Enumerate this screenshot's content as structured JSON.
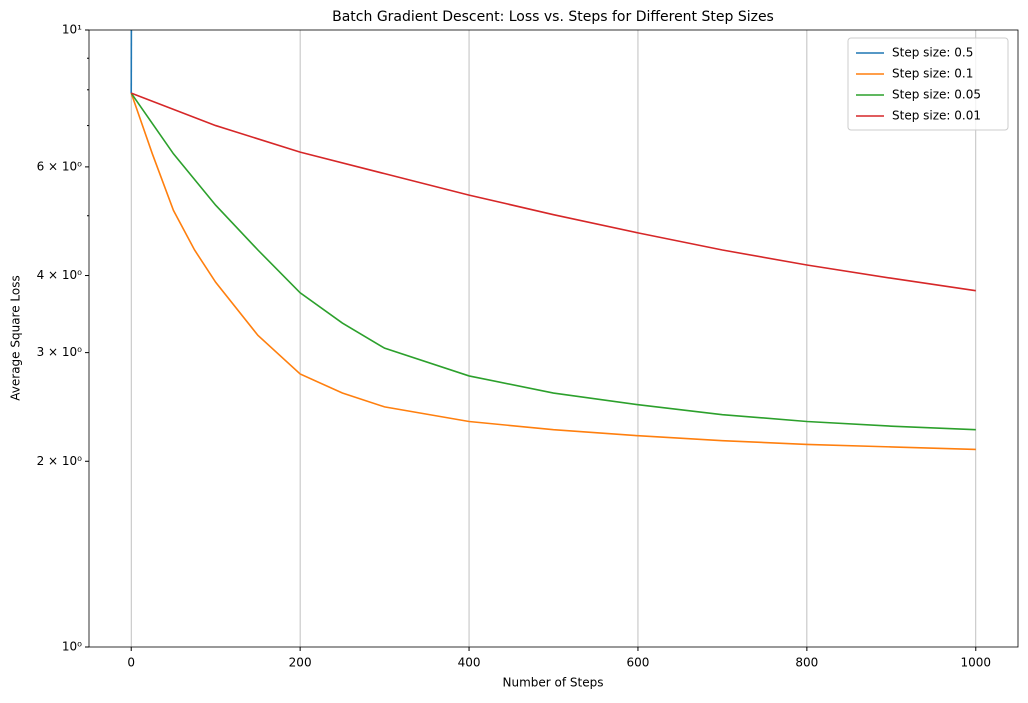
{
  "chart_data": {
    "type": "line",
    "title": "Batch Gradient Descent: Loss vs. Steps for Different Step Sizes",
    "xlabel": "Number of Steps",
    "ylabel": "Average Square Loss",
    "xlim": [
      -50,
      1050
    ],
    "xticks": [
      0,
      200,
      400,
      600,
      800,
      1000
    ],
    "ylim": [
      1,
      10
    ],
    "yscale": "log",
    "yticks": [
      {
        "value": 1,
        "label": "10⁰"
      },
      {
        "value": 2,
        "label": "2 × 10⁰"
      },
      {
        "value": 3,
        "label": "3 × 10⁰"
      },
      {
        "value": 4,
        "label": "4 × 10⁰"
      },
      {
        "value": 6,
        "label": "6 × 10⁰"
      },
      {
        "value": 10,
        "label": "10¹"
      }
    ],
    "yminor": [
      5,
      7,
      8,
      9
    ],
    "grid": "x",
    "legend": "upper right",
    "series": [
      {
        "name": "Step size: 0.5",
        "color": "#1f77b4",
        "x": [
          0,
          1
        ],
        "values": [
          7.9,
          30
        ]
      },
      {
        "name": "Step size: 0.1",
        "color": "#ff7f0e",
        "x": [
          0,
          25,
          50,
          75,
          100,
          150,
          200,
          250,
          300,
          400,
          500,
          600,
          700,
          800,
          900,
          1000
        ],
        "values": [
          7.9,
          6.3,
          5.1,
          4.4,
          3.9,
          3.2,
          2.77,
          2.58,
          2.45,
          2.32,
          2.25,
          2.2,
          2.16,
          2.13,
          2.11,
          2.09
        ]
      },
      {
        "name": "Step size: 0.05",
        "color": "#2ca02c",
        "x": [
          0,
          50,
          100,
          150,
          200,
          250,
          300,
          400,
          500,
          600,
          700,
          800,
          900,
          1000
        ],
        "values": [
          7.9,
          6.3,
          5.2,
          4.4,
          3.75,
          3.35,
          3.05,
          2.75,
          2.58,
          2.47,
          2.38,
          2.32,
          2.28,
          2.25
        ]
      },
      {
        "name": "Step size: 0.01",
        "color": "#d62728",
        "x": [
          0,
          100,
          200,
          300,
          400,
          500,
          600,
          700,
          800,
          900,
          1000
        ],
        "values": [
          7.9,
          7.0,
          6.34,
          5.85,
          5.4,
          5.02,
          4.69,
          4.4,
          4.16,
          3.96,
          3.78
        ]
      }
    ]
  }
}
